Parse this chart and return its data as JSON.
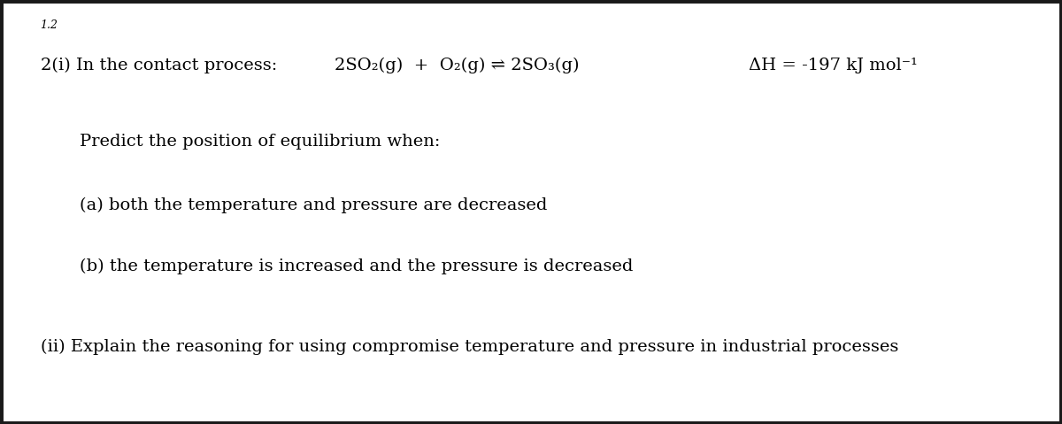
{
  "background_color": "#ffffff",
  "question_number": "1.2",
  "line1": "2(i) In the contact process:",
  "equation": "2SO₂(g)  +  O₂(g) ⇌ 2SO₃(g)",
  "delta_h": "ΔH = -197 kJ mol⁻¹",
  "predict_text": "Predict the position of equilibrium when:",
  "part_a": "(a) both the temperature and pressure are decreased",
  "part_b": "(b) the temperature is increased and the pressure is decreased",
  "part_ii": "(ii) Explain the reasoning for using compromise temperature and pressure in industrial processes",
  "font_size_question_number": 9,
  "font_size_main": 14,
  "text_color": "#000000",
  "border_color": "#1a1a1a"
}
